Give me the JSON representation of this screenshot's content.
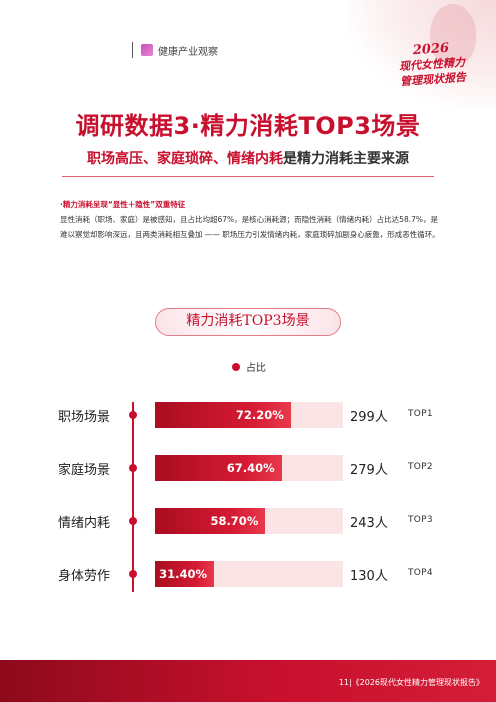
{
  "header": {
    "brand": "健康产业观察",
    "corner_year": "2026",
    "corner_line2": "现代女性精力",
    "corner_line3": "管理现状报告"
  },
  "title": "调研数据3·精力消耗TOP3场景",
  "subtitle": {
    "red_part": "职场高压、家庭琐碎、情绪内耗",
    "dark_part": "是精力消耗主要来源"
  },
  "note": {
    "heading": "·精力消耗呈现“显性＋隐性”双重特征",
    "body": "显性消耗（职场、家庭）是被感知，且占比均超67%，是核心消耗源；而隐性消耗（情绪内耗）占比达58.7%，是难以察觉却影响深远，且两类消耗相互叠加 —— 职场压力引发情绪内耗，家庭琐碎加剧身心疲惫，形成恶性循环。"
  },
  "chart_data": {
    "type": "bar",
    "title": "精力消耗TOP3场景",
    "legend": [
      "占比"
    ],
    "legend_position": "top",
    "orientation": "horizontal",
    "unit": "%",
    "xlim": [
      0,
      100
    ],
    "categories": [
      "职场场景",
      "家庭场景",
      "情绪内耗",
      "身体劳作"
    ],
    "series": [
      {
        "name": "占比",
        "values": [
          72.2,
          67.4,
          58.7,
          31.4
        ]
      }
    ],
    "value_labels": [
      "72.20%",
      "67.40%",
      "58.70%",
      "31.40%"
    ],
    "counts": [
      "299人",
      "279人",
      "243人",
      "130人"
    ],
    "ranks": [
      "TOP1",
      "TOP2",
      "TOP3",
      "TOP4"
    ]
  },
  "footer": {
    "page_label": "11|《2026现代女性精力管理现状报告》"
  },
  "colors": {
    "accent": "#c8102e",
    "bar_track": "#fbe4e6"
  }
}
